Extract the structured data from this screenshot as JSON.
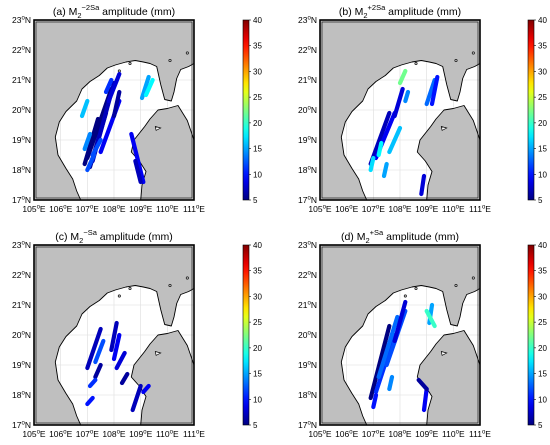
{
  "figure": {
    "panels": [
      {
        "id": "a",
        "title": {
          "prefix": "(a) M",
          "sub": "2",
          "sup": "−2Sa",
          "suffix": " amplitude (mm)"
        },
        "tracks": [
          [
            [
              106.9,
              18.2
            ],
            [
              107.4,
              19.7
            ],
            5
          ],
          [
            [
              107.1,
              18.1
            ],
            [
              107.7,
              19.9
            ],
            6
          ],
          [
            [
              107.0,
              18.4
            ],
            [
              107.9,
              20.7
            ],
            5
          ],
          [
            [
              107.2,
              18.3
            ],
            [
              108.0,
              20.9
            ],
            7
          ],
          [
            [
              107.5,
              18.6
            ],
            [
              108.2,
              20.3
            ],
            9
          ],
          [
            [
              107.8,
              20.3
            ],
            [
              108.2,
              21.2
            ],
            8
          ],
          [
            [
              106.9,
              18.7
            ],
            [
              107.1,
              19.2
            ],
            14
          ],
          [
            [
              107.2,
              18.5
            ],
            [
              107.5,
              19.0
            ],
            12
          ],
          [
            [
              106.8,
              19.8
            ],
            [
              107.0,
              20.3
            ],
            16
          ],
          [
            [
              107.7,
              20.6
            ],
            [
              107.9,
              21.0
            ],
            11
          ],
          [
            [
              109.05,
              20.4
            ],
            [
              109.3,
              21.1
            ],
            15
          ],
          [
            [
              109.2,
              20.5
            ],
            [
              109.45,
              21.0
            ],
            18
          ],
          [
            [
              108.65,
              19.2
            ],
            [
              109.1,
              17.6
            ],
            9
          ],
          [
            [
              108.8,
              18.3
            ],
            [
              109.0,
              17.6
            ],
            7
          ],
          [
            [
              108.0,
              19.8
            ],
            [
              108.2,
              20.6
            ],
            6
          ],
          [
            [
              107.0,
              18.0
            ],
            [
              107.25,
              18.5
            ],
            12
          ]
        ]
      },
      {
        "id": "b",
        "title": {
          "prefix": "(b) M",
          "sub": "2",
          "sup": "+2Sa",
          "suffix": " amplitude (mm)"
        },
        "tracks": [
          [
            [
              106.9,
              18.2
            ],
            [
              107.6,
              19.9
            ],
            7
          ],
          [
            [
              107.1,
              18.4
            ],
            [
              107.8,
              19.9
            ],
            9
          ],
          [
            [
              107.6,
              18.6
            ],
            [
              108.0,
              19.4
            ],
            16
          ],
          [
            [
              107.8,
              19.8
            ],
            [
              108.1,
              20.7
            ],
            8
          ],
          [
            [
              108.0,
              20.9
            ],
            [
              108.2,
              21.3
            ],
            22
          ],
          [
            [
              109.0,
              20.2
            ],
            [
              109.3,
              21.0
            ],
            13
          ],
          [
            [
              109.2,
              20.2
            ],
            [
              109.4,
              21.1
            ],
            10
          ],
          [
            [
              108.8,
              17.2
            ],
            [
              108.9,
              17.8
            ],
            8
          ],
          [
            [
              107.4,
              17.8
            ],
            [
              107.5,
              18.2
            ],
            15
          ],
          [
            [
              106.9,
              18.0
            ],
            [
              107.0,
              18.4
            ],
            17
          ],
          [
            [
              107.2,
              18.5
            ],
            [
              107.3,
              18.9
            ],
            18
          ],
          [
            [
              108.2,
              20.3
            ],
            [
              108.3,
              20.6
            ],
            14
          ]
        ]
      },
      {
        "id": "c",
        "title": {
          "prefix": "(c) M",
          "sub": "2",
          "sup": "−Sa",
          "suffix": " amplitude (mm)"
        },
        "tracks": [
          [
            [
              107.0,
              18.9
            ],
            [
              107.5,
              20.2
            ],
            7
          ],
          [
            [
              107.3,
              19.1
            ],
            [
              107.6,
              19.8
            ],
            12
          ],
          [
            [
              107.3,
              18.6
            ],
            [
              107.5,
              19.0
            ],
            6
          ],
          [
            [
              107.9,
              19.5
            ],
            [
              108.1,
              20.4
            ],
            7
          ],
          [
            [
              108.1,
              18.9
            ],
            [
              108.4,
              19.4
            ],
            8
          ],
          [
            [
              108.3,
              18.4
            ],
            [
              108.5,
              18.7
            ],
            6
          ],
          [
            [
              108.7,
              17.5
            ],
            [
              109.0,
              18.3
            ],
            7
          ],
          [
            [
              107.0,
              17.7
            ],
            [
              107.2,
              17.9
            ],
            10
          ],
          [
            [
              107.1,
              18.3
            ],
            [
              107.3,
              18.5
            ],
            11
          ],
          [
            [
              109.1,
              18.1
            ],
            [
              109.3,
              18.3
            ],
            9
          ],
          [
            [
              108.0,
              19.2
            ],
            [
              108.2,
              20.0
            ],
            9
          ]
        ]
      },
      {
        "id": "d",
        "title": {
          "prefix": "(d) M",
          "sub": "2",
          "sup": "+Sa",
          "suffix": " amplitude (mm)"
        },
        "tracks": [
          [
            [
              106.9,
              17.9
            ],
            [
              107.6,
              20.3
            ],
            5
          ],
          [
            [
              107.1,
              18.1
            ],
            [
              107.8,
              20.0
            ],
            11
          ],
          [
            [
              107.2,
              18.6
            ],
            [
              107.9,
              20.6
            ],
            13
          ],
          [
            [
              107.5,
              19.0
            ],
            [
              108.2,
              20.8
            ],
            12
          ],
          [
            [
              107.8,
              19.8
            ],
            [
              108.2,
              21.1
            ],
            8
          ],
          [
            [
              109.1,
              20.4
            ],
            [
              109.2,
              21.0
            ],
            15
          ],
          [
            [
              109.0,
              20.8
            ],
            [
              109.3,
              20.3
            ],
            20
          ],
          [
            [
              108.9,
              17.5
            ],
            [
              109.0,
              18.2
            ],
            9
          ],
          [
            [
              107.0,
              17.6
            ],
            [
              107.1,
              18.0
            ],
            10
          ],
          [
            [
              108.7,
              18.5
            ],
            [
              109.0,
              18.2
            ],
            6
          ],
          [
            [
              107.6,
              18.2
            ],
            [
              107.7,
              18.6
            ],
            14
          ]
        ]
      }
    ],
    "axes": {
      "xticks": [
        105,
        106,
        107,
        108,
        109,
        110,
        111
      ],
      "yticks": [
        17,
        18,
        19,
        20,
        21,
        22,
        23
      ],
      "x_tick_suffix": "E",
      "y_tick_suffix": "N",
      "deg_symbol": "o"
    },
    "colorbar": {
      "min": 5,
      "max": 40,
      "ticks": [
        5,
        10,
        15,
        20,
        25,
        30,
        35,
        40
      ],
      "colormap": "jet"
    },
    "colors": {
      "land": "#bfbfbf",
      "sea": "#ffffff",
      "coast": "#000000",
      "grid": "#dddddd"
    }
  }
}
